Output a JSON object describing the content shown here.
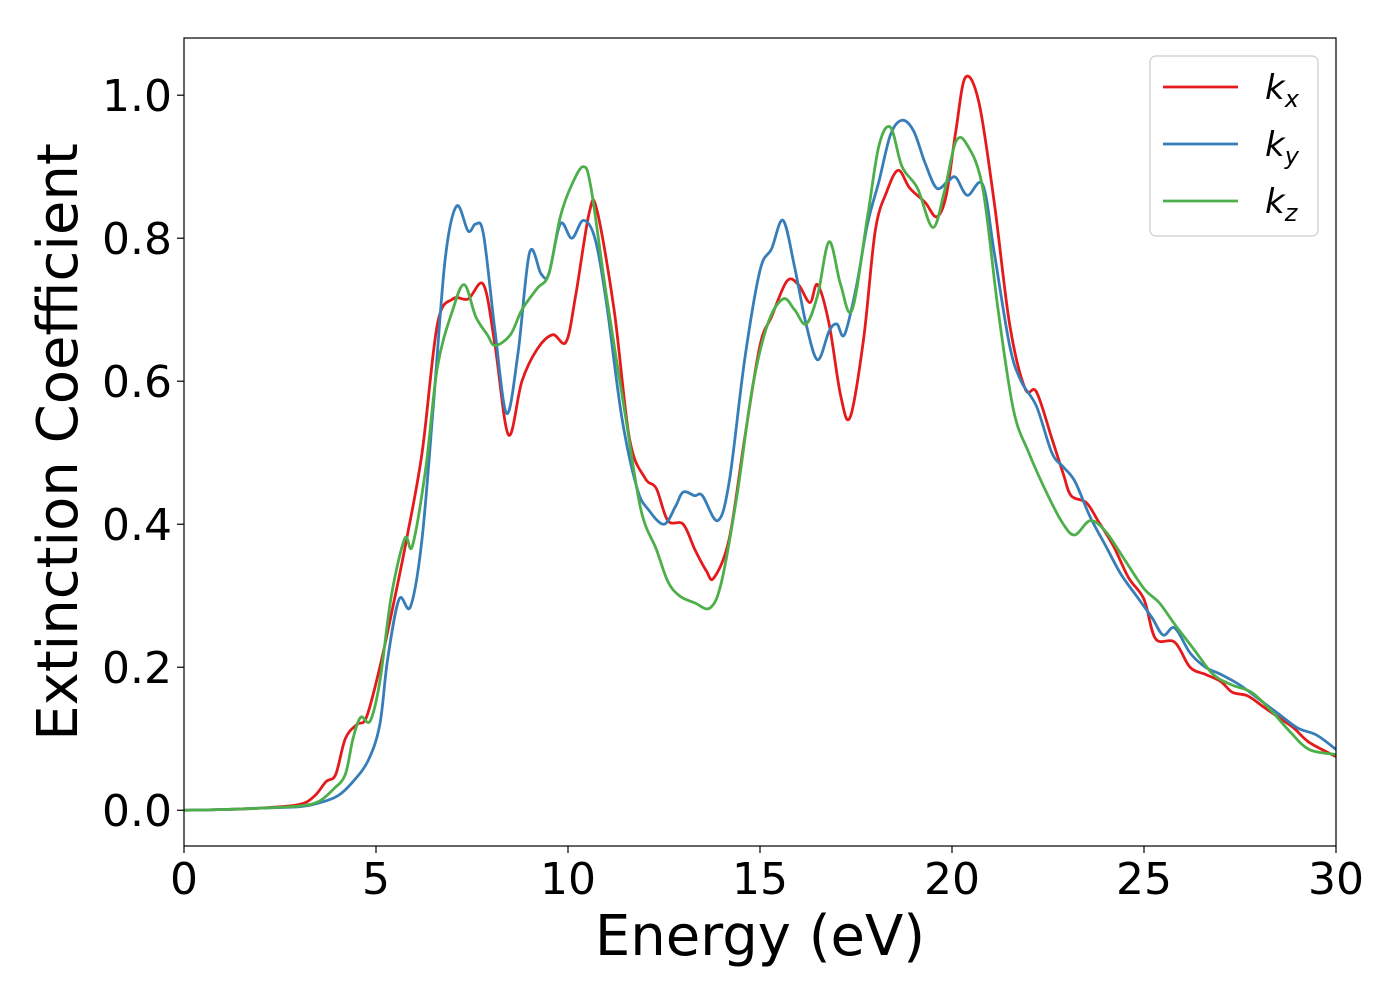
{
  "chart_data": {
    "type": "line",
    "xlabel": "Energy (eV)",
    "ylabel": "Extinction Coefficient",
    "xlim": [
      0,
      30
    ],
    "ylim": [
      -0.05,
      1.08
    ],
    "x_ticks": [
      "0",
      "5",
      "10",
      "15",
      "20",
      "25",
      "30"
    ],
    "x_tick_values": [
      0,
      5,
      10,
      15,
      20,
      25,
      30
    ],
    "y_ticks": [
      "0.0",
      "0.2",
      "0.4",
      "0.6",
      "0.8",
      "1.0"
    ],
    "y_tick_values": [
      0,
      0.2,
      0.4,
      0.6,
      0.8,
      1.0
    ],
    "grid": false,
    "legend_position": "top-right",
    "series": [
      {
        "name": "k_x",
        "label_main": "k",
        "label_sub": "x",
        "color": "#e41a1c",
        "points": [
          [
            0,
            0
          ],
          [
            1,
            0.001
          ],
          [
            2,
            0.003
          ],
          [
            3,
            0.008
          ],
          [
            3.4,
            0.02
          ],
          [
            3.7,
            0.04
          ],
          [
            3.95,
            0.05
          ],
          [
            4.2,
            0.1
          ],
          [
            4.5,
            0.12
          ],
          [
            4.75,
            0.13
          ],
          [
            5.1,
            0.2
          ],
          [
            5.5,
            0.3
          ],
          [
            5.8,
            0.38
          ],
          [
            6.2,
            0.5
          ],
          [
            6.6,
            0.68
          ],
          [
            7,
            0.715
          ],
          [
            7.4,
            0.715
          ],
          [
            7.8,
            0.735
          ],
          [
            8.1,
            0.65
          ],
          [
            8.45,
            0.525
          ],
          [
            8.8,
            0.6
          ],
          [
            9.2,
            0.645
          ],
          [
            9.6,
            0.665
          ],
          [
            9.95,
            0.655
          ],
          [
            10.2,
            0.72
          ],
          [
            10.55,
            0.835
          ],
          [
            10.75,
            0.84
          ],
          [
            11.2,
            0.7
          ],
          [
            11.6,
            0.52
          ],
          [
            12,
            0.465
          ],
          [
            12.3,
            0.45
          ],
          [
            12.6,
            0.405
          ],
          [
            13,
            0.4
          ],
          [
            13.3,
            0.365
          ],
          [
            13.6,
            0.335
          ],
          [
            13.8,
            0.325
          ],
          [
            14.2,
            0.38
          ],
          [
            14.6,
            0.52
          ],
          [
            15,
            0.65
          ],
          [
            15.3,
            0.69
          ],
          [
            15.7,
            0.74
          ],
          [
            16,
            0.735
          ],
          [
            16.3,
            0.71
          ],
          [
            16.5,
            0.735
          ],
          [
            16.8,
            0.68
          ],
          [
            17.1,
            0.58
          ],
          [
            17.35,
            0.55
          ],
          [
            17.7,
            0.66
          ],
          [
            18,
            0.81
          ],
          [
            18.3,
            0.865
          ],
          [
            18.6,
            0.895
          ],
          [
            18.9,
            0.87
          ],
          [
            19.3,
            0.85
          ],
          [
            19.6,
            0.83
          ],
          [
            19.85,
            0.86
          ],
          [
            20.1,
            0.95
          ],
          [
            20.35,
            1.025
          ],
          [
            20.7,
            0.99
          ],
          [
            21.1,
            0.85
          ],
          [
            21.5,
            0.68
          ],
          [
            21.9,
            0.59
          ],
          [
            22.2,
            0.585
          ],
          [
            22.6,
            0.52
          ],
          [
            22.9,
            0.47
          ],
          [
            23.1,
            0.44
          ],
          [
            23.5,
            0.43
          ],
          [
            23.8,
            0.405
          ],
          [
            24.2,
            0.37
          ],
          [
            24.6,
            0.325
          ],
          [
            25,
            0.295
          ],
          [
            25.3,
            0.24
          ],
          [
            25.8,
            0.235
          ],
          [
            26.2,
            0.2
          ],
          [
            26.6,
            0.19
          ],
          [
            27,
            0.18
          ],
          [
            27.3,
            0.165
          ],
          [
            27.7,
            0.16
          ],
          [
            28.1,
            0.145
          ],
          [
            28.5,
            0.13
          ],
          [
            28.9,
            0.115
          ],
          [
            29.3,
            0.095
          ],
          [
            30,
            0.075
          ]
        ]
      },
      {
        "name": "k_y",
        "label_main": "k",
        "label_sub": "y",
        "color": "#377eb8",
        "points": [
          [
            0,
            0
          ],
          [
            1,
            0.001
          ],
          [
            2,
            0.003
          ],
          [
            3,
            0.005
          ],
          [
            3.5,
            0.01
          ],
          [
            4,
            0.02
          ],
          [
            4.4,
            0.04
          ],
          [
            4.8,
            0.07
          ],
          [
            5.1,
            0.12
          ],
          [
            5.3,
            0.21
          ],
          [
            5.6,
            0.295
          ],
          [
            5.9,
            0.285
          ],
          [
            6.2,
            0.38
          ],
          [
            6.5,
            0.57
          ],
          [
            6.8,
            0.77
          ],
          [
            7.1,
            0.845
          ],
          [
            7.4,
            0.81
          ],
          [
            7.6,
            0.82
          ],
          [
            7.8,
            0.805
          ],
          [
            8.1,
            0.67
          ],
          [
            8.4,
            0.555
          ],
          [
            8.7,
            0.64
          ],
          [
            9,
            0.78
          ],
          [
            9.3,
            0.75
          ],
          [
            9.5,
            0.75
          ],
          [
            9.8,
            0.82
          ],
          [
            10.1,
            0.8
          ],
          [
            10.4,
            0.825
          ],
          [
            10.7,
            0.8
          ],
          [
            11,
            0.71
          ],
          [
            11.4,
            0.55
          ],
          [
            11.8,
            0.45
          ],
          [
            12.1,
            0.42
          ],
          [
            12.5,
            0.4
          ],
          [
            12.8,
            0.425
          ],
          [
            13,
            0.445
          ],
          [
            13.3,
            0.44
          ],
          [
            13.5,
            0.44
          ],
          [
            13.9,
            0.405
          ],
          [
            14.2,
            0.46
          ],
          [
            14.6,
            0.63
          ],
          [
            15,
            0.755
          ],
          [
            15.3,
            0.785
          ],
          [
            15.6,
            0.825
          ],
          [
            15.9,
            0.76
          ],
          [
            16.2,
            0.68
          ],
          [
            16.5,
            0.63
          ],
          [
            16.8,
            0.67
          ],
          [
            17,
            0.68
          ],
          [
            17.2,
            0.665
          ],
          [
            17.5,
            0.73
          ],
          [
            17.8,
            0.82
          ],
          [
            18.1,
            0.88
          ],
          [
            18.4,
            0.945
          ],
          [
            18.7,
            0.965
          ],
          [
            19,
            0.95
          ],
          [
            19.3,
            0.905
          ],
          [
            19.6,
            0.87
          ],
          [
            19.9,
            0.88
          ],
          [
            20.1,
            0.885
          ],
          [
            20.4,
            0.86
          ],
          [
            20.8,
            0.875
          ],
          [
            21.1,
            0.78
          ],
          [
            21.5,
            0.65
          ],
          [
            21.8,
            0.6
          ],
          [
            22.2,
            0.565
          ],
          [
            22.6,
            0.5
          ],
          [
            22.9,
            0.48
          ],
          [
            23.2,
            0.46
          ],
          [
            23.6,
            0.41
          ],
          [
            24,
            0.37
          ],
          [
            24.4,
            0.33
          ],
          [
            24.8,
            0.3
          ],
          [
            25.2,
            0.27
          ],
          [
            25.5,
            0.245
          ],
          [
            25.8,
            0.255
          ],
          [
            26.2,
            0.22
          ],
          [
            26.6,
            0.2
          ],
          [
            27,
            0.19
          ],
          [
            27.5,
            0.175
          ],
          [
            28,
            0.155
          ],
          [
            28.5,
            0.135
          ],
          [
            29,
            0.115
          ],
          [
            29.5,
            0.105
          ],
          [
            30,
            0.085
          ]
        ]
      },
      {
        "name": "k_z",
        "label_main": "k",
        "label_sub": "z",
        "color": "#4daf4a",
        "points": [
          [
            0,
            0
          ],
          [
            1,
            0.001
          ],
          [
            2,
            0.003
          ],
          [
            3,
            0.006
          ],
          [
            3.5,
            0.012
          ],
          [
            3.9,
            0.03
          ],
          [
            4.2,
            0.05
          ],
          [
            4.4,
            0.1
          ],
          [
            4.6,
            0.13
          ],
          [
            4.85,
            0.125
          ],
          [
            5.1,
            0.18
          ],
          [
            5.4,
            0.3
          ],
          [
            5.75,
            0.38
          ],
          [
            5.95,
            0.37
          ],
          [
            6.3,
            0.48
          ],
          [
            6.6,
            0.62
          ],
          [
            7,
            0.7
          ],
          [
            7.3,
            0.735
          ],
          [
            7.6,
            0.69
          ],
          [
            7.9,
            0.665
          ],
          [
            8.1,
            0.65
          ],
          [
            8.5,
            0.665
          ],
          [
            8.8,
            0.7
          ],
          [
            9.2,
            0.73
          ],
          [
            9.5,
            0.75
          ],
          [
            9.8,
            0.83
          ],
          [
            10.1,
            0.875
          ],
          [
            10.4,
            0.9
          ],
          [
            10.6,
            0.87
          ],
          [
            11,
            0.72
          ],
          [
            11.5,
            0.55
          ],
          [
            11.9,
            0.42
          ],
          [
            12.3,
            0.365
          ],
          [
            12.6,
            0.32
          ],
          [
            12.9,
            0.3
          ],
          [
            13.3,
            0.29
          ],
          [
            13.7,
            0.283
          ],
          [
            14,
            0.32
          ],
          [
            14.4,
            0.44
          ],
          [
            14.8,
            0.59
          ],
          [
            15.2,
            0.68
          ],
          [
            15.6,
            0.715
          ],
          [
            15.9,
            0.7
          ],
          [
            16.2,
            0.68
          ],
          [
            16.5,
            0.72
          ],
          [
            16.8,
            0.795
          ],
          [
            17.1,
            0.735
          ],
          [
            17.4,
            0.7
          ],
          [
            17.8,
            0.83
          ],
          [
            18.1,
            0.93
          ],
          [
            18.4,
            0.955
          ],
          [
            18.7,
            0.9
          ],
          [
            19.1,
            0.87
          ],
          [
            19.5,
            0.815
          ],
          [
            19.8,
            0.865
          ],
          [
            20.1,
            0.935
          ],
          [
            20.4,
            0.93
          ],
          [
            20.8,
            0.87
          ],
          [
            21.2,
            0.7
          ],
          [
            21.6,
            0.56
          ],
          [
            22,
            0.5
          ],
          [
            22.5,
            0.44
          ],
          [
            22.9,
            0.4
          ],
          [
            23.2,
            0.385
          ],
          [
            23.6,
            0.405
          ],
          [
            24,
            0.39
          ],
          [
            24.5,
            0.35
          ],
          [
            25,
            0.31
          ],
          [
            25.4,
            0.29
          ],
          [
            25.8,
            0.26
          ],
          [
            26.3,
            0.225
          ],
          [
            26.8,
            0.19
          ],
          [
            27.3,
            0.175
          ],
          [
            27.8,
            0.165
          ],
          [
            28.3,
            0.14
          ],
          [
            28.8,
            0.11
          ],
          [
            29.3,
            0.085
          ],
          [
            30,
            0.078
          ]
        ]
      }
    ]
  }
}
